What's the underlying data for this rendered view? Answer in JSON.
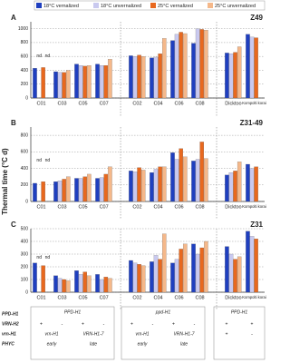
{
  "y_label": "Thermal time (°C d)",
  "chart_data": [
    {
      "type": "bar",
      "label": "A",
      "title": "Z49",
      "categories": [
        "C01",
        "C03",
        "C05",
        "C07",
        "C02",
        "C04",
        "C06",
        "C08",
        "Dicktoo",
        "Kompolti korai"
      ],
      "groups": [
        4,
        4,
        2
      ],
      "series": [
        {
          "name": "18°C vernalized",
          "color": "#1f3fbf",
          "values": [
            430,
            380,
            490,
            490,
            610,
            580,
            830,
            790,
            650,
            920
          ]
        },
        {
          "name": "18°C unvernalized",
          "color": "#c9c9ef",
          "values": [
            null,
            370,
            470,
            470,
            600,
            590,
            920,
            1000,
            640,
            880
          ]
        },
        {
          "name": "25°C vernalized",
          "color": "#e8681e",
          "values": [
            440,
            370,
            460,
            470,
            620,
            640,
            950,
            990,
            660,
            870
          ]
        },
        {
          "name": "25°C unvernalized",
          "color": "#f5b88a",
          "values": [
            null,
            400,
            470,
            560,
            600,
            860,
            930,
            980,
            740,
            null
          ]
        }
      ],
      "ylim": [
        0,
        1100
      ],
      "yticks": [
        0,
        200,
        400,
        600,
        800,
        1000
      ],
      "annotations": [
        {
          "text": "nd",
          "category": 0,
          "series": 1
        },
        {
          "text": "nd",
          "category": 0,
          "series": 3
        }
      ]
    },
    {
      "type": "bar",
      "label": "B",
      "title": "Z31-49",
      "categories": [
        "C01",
        "C03",
        "C05",
        "C07",
        "C02",
        "C04",
        "C06",
        "C08",
        "Dicktoo",
        "Kompolti korai"
      ],
      "groups": [
        4,
        4,
        2
      ],
      "series": [
        {
          "name": "18°C vernalized",
          "color": "#1f3fbf",
          "values": [
            220,
            240,
            280,
            280,
            370,
            350,
            590,
            490,
            320,
            450
          ]
        },
        {
          "name": "18°C unvernalized",
          "color": "#c9c9ef",
          "values": [
            null,
            250,
            280,
            290,
            360,
            390,
            510,
            510,
            350,
            400
          ]
        },
        {
          "name": "25°C vernalized",
          "color": "#e8681e",
          "values": [
            240,
            270,
            300,
            330,
            410,
            420,
            640,
            720,
            370,
            420
          ]
        },
        {
          "name": "25°C unvernalized",
          "color": "#f5b88a",
          "values": [
            null,
            300,
            330,
            420,
            380,
            420,
            540,
            520,
            480,
            null
          ]
        }
      ],
      "ylim": [
        0,
        900
      ],
      "yticks": [
        0,
        200,
        400,
        600,
        800
      ],
      "annotations": [
        {
          "text": "nd",
          "category": 0,
          "series": 1
        },
        {
          "text": "nd",
          "category": 0,
          "series": 3
        }
      ]
    },
    {
      "type": "bar",
      "label": "C",
      "title": "Z31",
      "categories": [
        "C01",
        "C03",
        "C05",
        "C07",
        "C02",
        "C04",
        "C06",
        "C08",
        "Dicktoo",
        "Kompolti korai"
      ],
      "groups": [
        4,
        4,
        2
      ],
      "series": [
        {
          "name": "18°C vernalized",
          "color": "#1f3fbf",
          "values": [
            230,
            130,
            170,
            140,
            250,
            240,
            230,
            380,
            360,
            480
          ]
        },
        {
          "name": "18°C unvernalized",
          "color": "#c9c9ef",
          "values": [
            null,
            110,
            140,
            100,
            230,
            290,
            260,
            300,
            300,
            440
          ]
        },
        {
          "name": "25°C vernalized",
          "color": "#e8681e",
          "values": [
            210,
            100,
            160,
            120,
            220,
            260,
            340,
            350,
            260,
            420
          ]
        },
        {
          "name": "25°C unvernalized",
          "color": "#f5b88a",
          "values": [
            null,
            90,
            130,
            110,
            210,
            460,
            380,
            400,
            280,
            null
          ]
        }
      ],
      "ylim": [
        0,
        500
      ],
      "yticks": [
        0,
        100,
        200,
        300,
        400,
        500
      ],
      "annotations": [
        {
          "text": "nd",
          "category": 0,
          "series": 1
        },
        {
          "text": "nd",
          "category": 0,
          "series": 3
        }
      ]
    }
  ],
  "table": {
    "row_labels": [
      "PPD-H1",
      "VRN-H2",
      "vrn-H1",
      "PHYC"
    ],
    "boxes": [
      {
        "header": "PPD-H1",
        "vrn_h2": [
          "+",
          "-",
          "+",
          "-"
        ],
        "vrn_h1": [
          "vrn-H1",
          "VRN-H1-7"
        ],
        "phyc": [
          "early",
          "late"
        ]
      },
      {
        "header": "ppd-H1",
        "vrn_h2": [
          "+",
          "-",
          "+",
          "-"
        ],
        "vrn_h1": [
          "vrn-H1",
          "VRN-H1-7"
        ],
        "phyc": [
          "early",
          "late"
        ]
      },
      {
        "header": "PPD-H1",
        "vrn_h2": [
          "+",
          "+"
        ],
        "vrn_h1": [
          "+",
          "-"
        ],
        "phyc": []
      }
    ]
  }
}
